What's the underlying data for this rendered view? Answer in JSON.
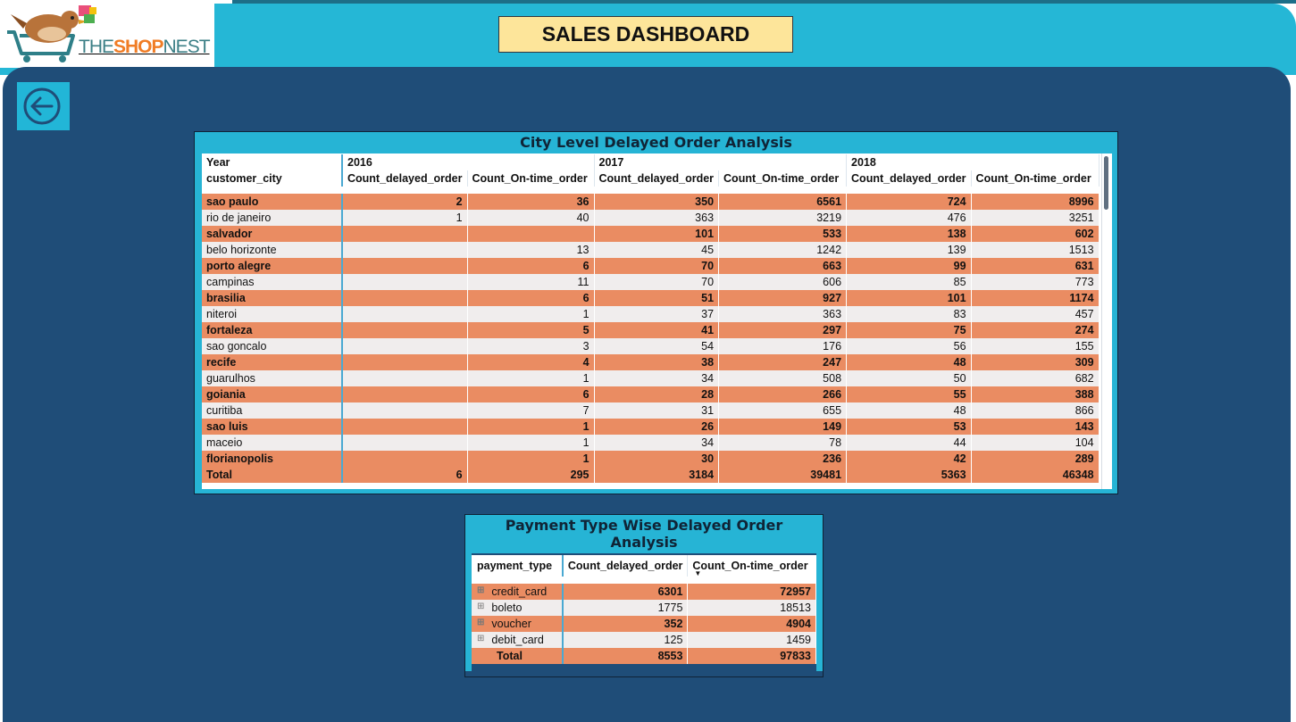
{
  "logo": {
    "text_prefix": "THE",
    "text_highlight": "SHOP",
    "text_suffix": "NEST"
  },
  "header": {
    "title": "SALES DASHBOARD"
  },
  "back_button": {
    "icon": "arrow-left-circle-icon"
  },
  "city_table": {
    "title": "City Level Delayed Order Analysis",
    "year_label": "Year",
    "years": [
      "2016",
      "2017",
      "2018"
    ],
    "row_header": "customer_city",
    "measures": [
      "Count_delayed_order",
      "Count_On-time_order"
    ],
    "rows": [
      {
        "city": "sao paulo",
        "values": [
          "2",
          "36",
          "350",
          "6561",
          "724",
          "8996"
        ]
      },
      {
        "city": "rio de janeiro",
        "values": [
          "1",
          "40",
          "363",
          "3219",
          "476",
          "3251"
        ]
      },
      {
        "city": "salvador",
        "values": [
          "",
          "",
          "101",
          "533",
          "138",
          "602"
        ]
      },
      {
        "city": "belo horizonte",
        "values": [
          "",
          "13",
          "45",
          "1242",
          "139",
          "1513"
        ]
      },
      {
        "city": "porto alegre",
        "values": [
          "",
          "6",
          "70",
          "663",
          "99",
          "631"
        ]
      },
      {
        "city": "campinas",
        "values": [
          "",
          "11",
          "70",
          "606",
          "85",
          "773"
        ]
      },
      {
        "city": "brasilia",
        "values": [
          "",
          "6",
          "51",
          "927",
          "101",
          "1174"
        ]
      },
      {
        "city": "niteroi",
        "values": [
          "",
          "1",
          "37",
          "363",
          "83",
          "457"
        ]
      },
      {
        "city": "fortaleza",
        "values": [
          "",
          "5",
          "41",
          "297",
          "75",
          "274"
        ]
      },
      {
        "city": "sao goncalo",
        "values": [
          "",
          "3",
          "54",
          "176",
          "56",
          "155"
        ]
      },
      {
        "city": "recife",
        "values": [
          "",
          "4",
          "38",
          "247",
          "48",
          "309"
        ]
      },
      {
        "city": "guarulhos",
        "values": [
          "",
          "1",
          "34",
          "508",
          "50",
          "682"
        ]
      },
      {
        "city": "goiania",
        "values": [
          "",
          "6",
          "28",
          "266",
          "55",
          "388"
        ]
      },
      {
        "city": "curitiba",
        "values": [
          "",
          "7",
          "31",
          "655",
          "48",
          "866"
        ]
      },
      {
        "city": "sao luis",
        "values": [
          "",
          "1",
          "26",
          "149",
          "53",
          "143"
        ]
      },
      {
        "city": "maceio",
        "values": [
          "",
          "1",
          "34",
          "78",
          "44",
          "104"
        ]
      },
      {
        "city": "florianopolis",
        "values": [
          "",
          "1",
          "30",
          "236",
          "42",
          "289"
        ]
      }
    ],
    "total": {
      "label": "Total",
      "values": [
        "6",
        "295",
        "3184",
        "39481",
        "5363",
        "46348"
      ]
    }
  },
  "payment_table": {
    "title": "Payment Type Wise Delayed Order Analysis",
    "columns": [
      "payment_type",
      "Count_delayed_order",
      "Count_On-time_order"
    ],
    "rows": [
      {
        "type": "credit_card",
        "values": [
          "6301",
          "72957"
        ]
      },
      {
        "type": "boleto",
        "values": [
          "1775",
          "18513"
        ]
      },
      {
        "type": "voucher",
        "values": [
          "352",
          "4904"
        ]
      },
      {
        "type": "debit_card",
        "values": [
          "125",
          "1459"
        ]
      }
    ],
    "total": {
      "label": "Total",
      "values": [
        "8553",
        "97833"
      ]
    }
  },
  "colors": {
    "header_band": "#25b7d6",
    "panel": "#1f4d78",
    "title_box": "#fde59a",
    "row_highlight": "#ea8c62",
    "row_alt": "#f0eded"
  }
}
